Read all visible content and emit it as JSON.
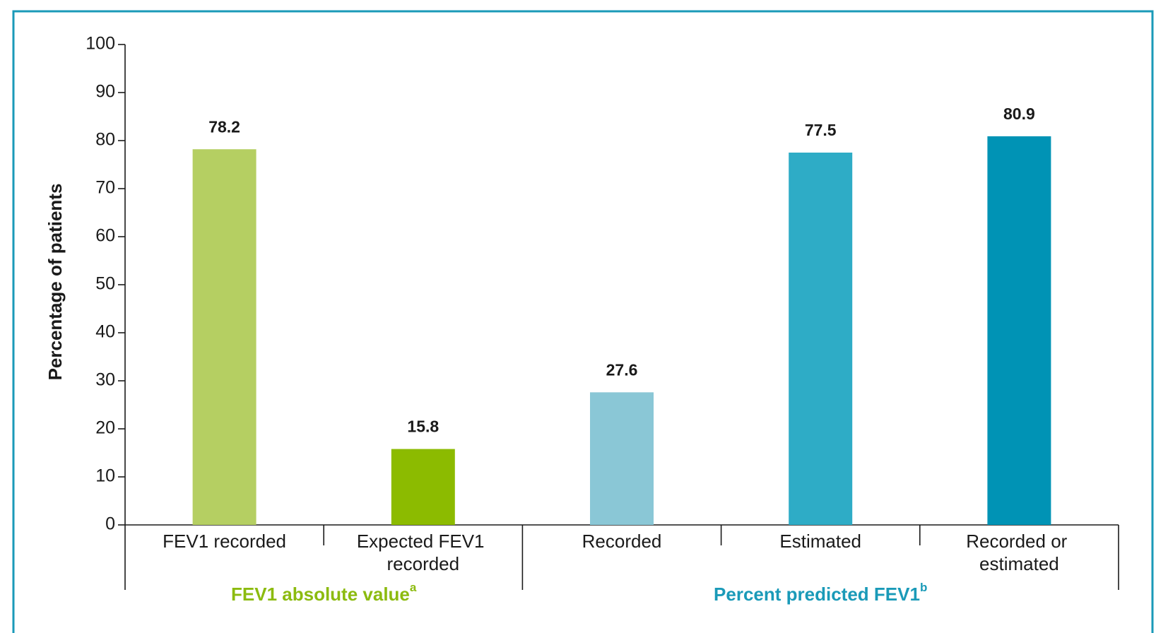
{
  "chart_data": {
    "type": "bar",
    "y_label": "Percentage of patients",
    "categories": [
      "FEV1 recorded",
      "Expected FEV1 recorded",
      "Recorded",
      "Estimated",
      "Recorded or estimated"
    ],
    "values": [
      78.2,
      15.8,
      27.6,
      77.5,
      80.9
    ],
    "colors": [
      "#b5cf62",
      "#8cbb00",
      "#8ac7d6",
      "#2eacc6",
      "#0093b5"
    ],
    "groups": [
      {
        "name": "FEV1 absolute value",
        "sup": "a",
        "color": "#8cbb0f",
        "span": 2
      },
      {
        "name": "Percent predicted FEV1",
        "sup": "b",
        "color": "#1a9ab8",
        "span": 3
      }
    ],
    "ylim": [
      0,
      100
    ],
    "yticks": [
      0,
      10,
      20,
      30,
      40,
      50,
      60,
      70,
      80,
      90,
      100
    ],
    "grid": false
  }
}
